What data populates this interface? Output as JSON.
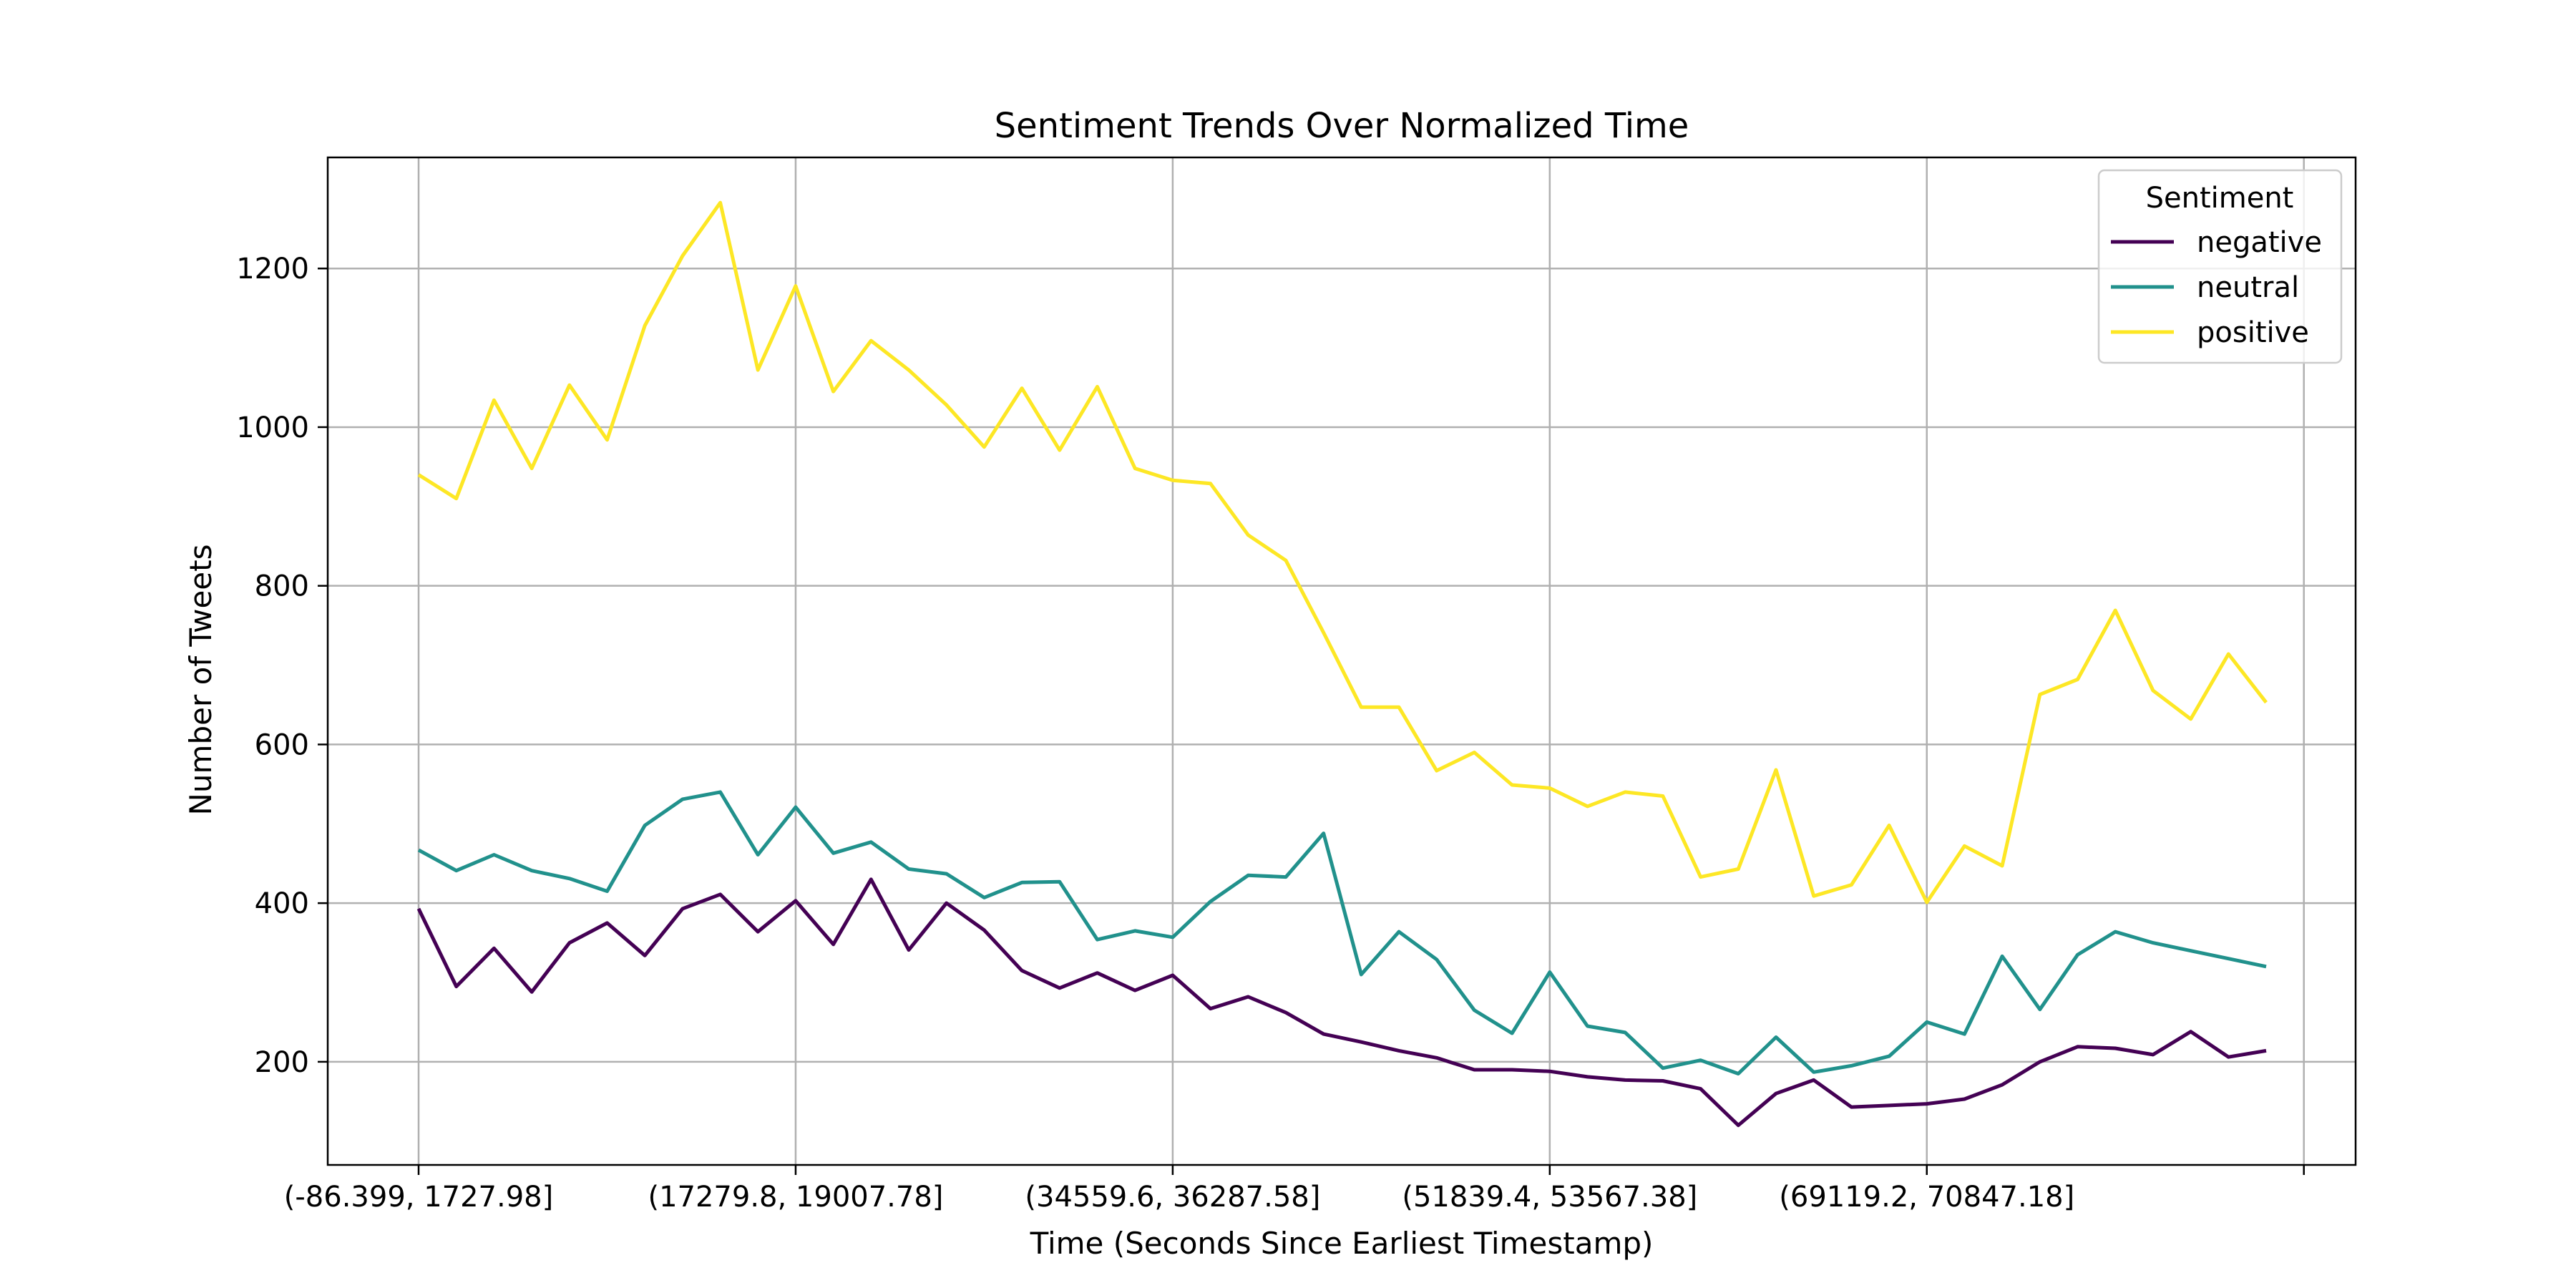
{
  "chart_data": {
    "type": "line",
    "title": "Sentiment Trends Over Normalized Time",
    "xlabel": "Time (Seconds Since Earliest Timestamp)",
    "ylabel": "Number of Tweets",
    "ylim": [
      70,
      1340
    ],
    "yticks": [
      200,
      400,
      600,
      800,
      1000,
      1200
    ],
    "xtick_labels": [
      "(-86.399, 1727.98]",
      "(17279.8, 19007.78]",
      "(34559.6, 36287.58]",
      "(51839.4, 53567.38]",
      "(69119.2, 70847.18]",
      ""
    ],
    "xtick_bin_index": [
      0,
      10,
      20,
      30,
      40,
      50
    ],
    "x_bin_count": 50,
    "grid": true,
    "legend": {
      "title": "Sentiment",
      "placement": "top-right"
    },
    "series": [
      {
        "name": "negative",
        "color": "#440154",
        "values": [
          393,
          295,
          343,
          288,
          350,
          375,
          334,
          393,
          411,
          364,
          403,
          348,
          430,
          341,
          400,
          366,
          315,
          293,
          312,
          290,
          309,
          267,
          282,
          262,
          235,
          225,
          214,
          205,
          190,
          190,
          188,
          181,
          177,
          176,
          166,
          120,
          160,
          177,
          143,
          145,
          147,
          153,
          171,
          200,
          219,
          217,
          209,
          238,
          206,
          214
        ]
      },
      {
        "name": "neutral",
        "color": "#21918c",
        "values": [
          467,
          441,
          461,
          441,
          431,
          415,
          498,
          531,
          540,
          461,
          521,
          463,
          477,
          443,
          437,
          407,
          426,
          427,
          354,
          365,
          357,
          402,
          435,
          433,
          488,
          310,
          364,
          329,
          265,
          236,
          313,
          245,
          237,
          192,
          202,
          185,
          231,
          187,
          195,
          207,
          250,
          235,
          333,
          266,
          335,
          364,
          350,
          340,
          330,
          320
        ]
      },
      {
        "name": "positive",
        "color": "#fde725",
        "values": [
          940,
          910,
          1034,
          948,
          1053,
          984,
          1128,
          1216,
          1283,
          1072,
          1178,
          1045,
          1109,
          1072,
          1028,
          975,
          1049,
          971,
          1051,
          948,
          933,
          929,
          864,
          832,
          741,
          647,
          647,
          567,
          590,
          549,
          545,
          522,
          540,
          535,
          433,
          443,
          568,
          409,
          423,
          498,
          401,
          472,
          447,
          663,
          682,
          769,
          668,
          632,
          714,
          653
        ]
      }
    ]
  }
}
